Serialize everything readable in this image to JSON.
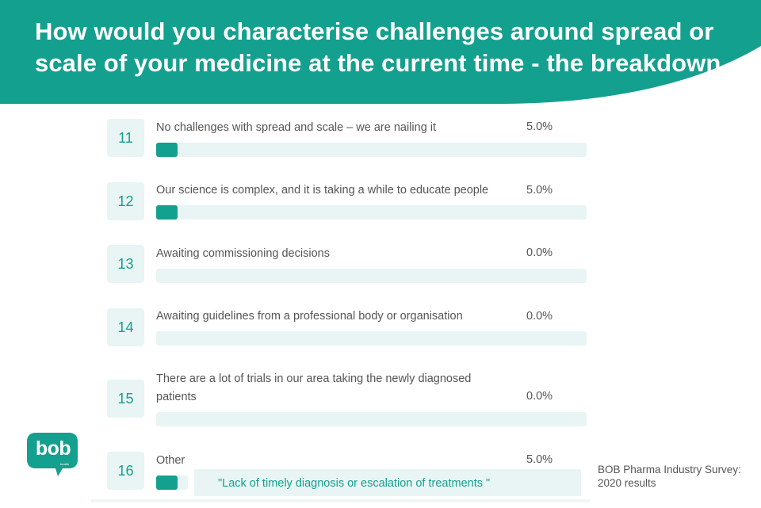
{
  "header": {
    "title": "How would you characterise challenges around spread or scale of your medicine at the current time - the breakdown",
    "color": "#14a08e"
  },
  "chart_data": {
    "type": "bar",
    "orientation": "horizontal",
    "categories": [
      "No challenges with spread and scale – we are nailing it",
      "Our science is complex, and it is taking a while to educate people",
      "Awaiting commissioning decisions",
      "Awaiting guidelines from a professional body or organisation",
      "There are a lot of trials in our area taking the newly diagnosed patients",
      "Other"
    ],
    "numbers": [
      "11",
      "12",
      "13",
      "14",
      "15",
      "16"
    ],
    "values": [
      5.0,
      5.0,
      0.0,
      0.0,
      0.0,
      5.0
    ],
    "value_labels": [
      "5.0%",
      "5.0%",
      "0.0%",
      "0.0%",
      "0.0%",
      "5.0%"
    ],
    "xlim": [
      0,
      100
    ],
    "bar_color": "#14a08e",
    "track_color": "#e9f5f4"
  },
  "other_response": "\"Lack of timely diagnosis or escalation of treatments \"",
  "source": {
    "line1": "BOB Pharma Industry Survey:",
    "line2": "2020 results"
  },
  "logo": {
    "text": "bob",
    "subtext": "health",
    "icon": "speech-bubble-logo"
  }
}
